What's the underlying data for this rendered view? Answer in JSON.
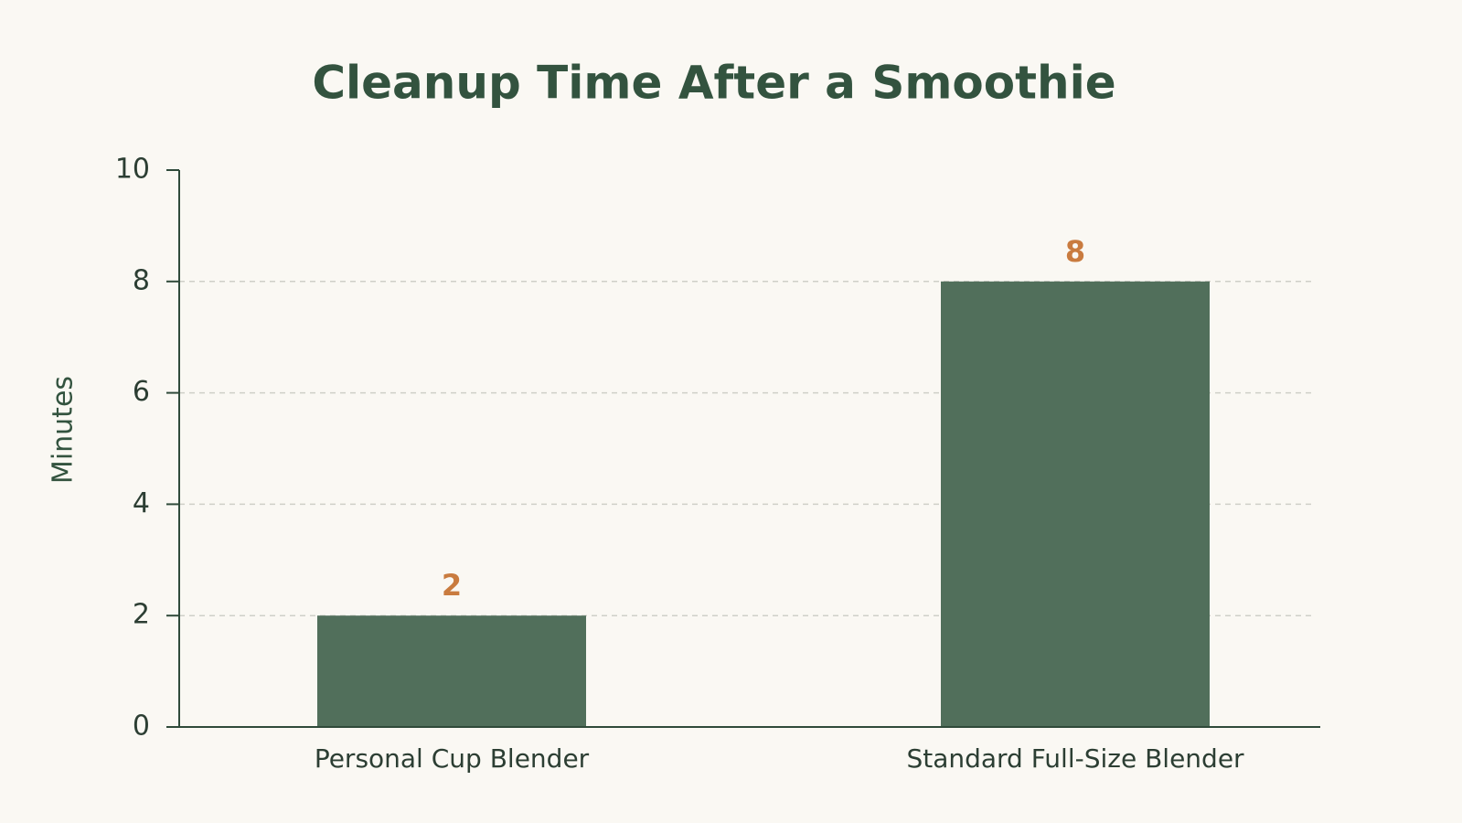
{
  "chart_data": {
    "type": "bar",
    "title": "Cleanup Time After a Smoothie",
    "y_label": "Minutes",
    "categories": [
      "Personal Cup Blender",
      "Standard Full-Size Blender"
    ],
    "values": [
      2,
      8
    ],
    "color": "#516f5b",
    "value_label_color": "#c97b3f",
    "ylim": [
      0,
      10
    ],
    "yticks": [
      0,
      2,
      4,
      6,
      8,
      10
    ],
    "grid": true
  }
}
